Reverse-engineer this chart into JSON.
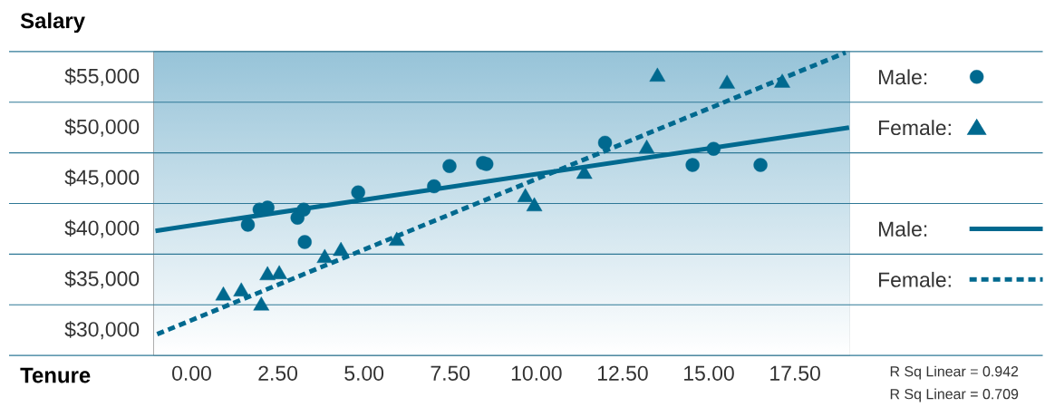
{
  "chart_data": {
    "type": "scatter",
    "title": "Salary",
    "xlabel": "Tenure",
    "xlim": [
      -1.1,
      19.1
    ],
    "ylim": [
      27500,
      57500
    ],
    "xticks": [
      {
        "value": 0,
        "label": "0.00"
      },
      {
        "value": 2.5,
        "label": "2.50"
      },
      {
        "value": 5,
        "label": "5.00"
      },
      {
        "value": 7.5,
        "label": "7.50"
      },
      {
        "value": 10,
        "label": "10.00"
      },
      {
        "value": 12.5,
        "label": "12.50"
      },
      {
        "value": 15,
        "label": "15.00"
      },
      {
        "value": 17.5,
        "label": "17.50"
      }
    ],
    "yticks": [
      {
        "value": 27500,
        "label": null
      },
      {
        "value": 30000,
        "label": "$30,000"
      },
      {
        "value": 32500,
        "label": null
      },
      {
        "value": 35000,
        "label": "$35,000"
      },
      {
        "value": 37500,
        "label": null
      },
      {
        "value": 40000,
        "label": "$40,000"
      },
      {
        "value": 42500,
        "label": null
      },
      {
        "value": 45000,
        "label": "$45,000"
      },
      {
        "value": 47500,
        "label": null
      },
      {
        "value": 50000,
        "label": "$50,000"
      },
      {
        "value": 52500,
        "label": null
      },
      {
        "value": 55000,
        "label": "$55,000"
      },
      {
        "value": 57500,
        "label": null
      }
    ],
    "grid": "y",
    "legend": "right",
    "series": [
      {
        "name": "Male:",
        "marker": "circle",
        "color": "#00698f",
        "x": [
          1.63,
          1.97,
          2.2,
          3.07,
          3.25,
          3.28,
          4.83,
          7.03,
          7.48,
          8.45,
          8.55,
          11.99,
          14.53,
          15.14,
          16.5
        ],
        "values": [
          40400,
          41900,
          42100,
          41100,
          41900,
          38700,
          43600,
          44200,
          46200,
          46500,
          46400,
          48500,
          46300,
          47900,
          46300
        ]
      },
      {
        "name": "Female:",
        "marker": "triangle",
        "color": "#00698f",
        "x": [
          0.92,
          1.44,
          2.02,
          2.2,
          2.54,
          3.86,
          4.33,
          5.95,
          9.68,
          9.94,
          11.39,
          13.2,
          13.51,
          15.53,
          17.13
        ],
        "values": [
          33400,
          33800,
          32400,
          35400,
          35500,
          37100,
          37800,
          38800,
          43100,
          42200,
          45400,
          47900,
          55000,
          54300,
          54400
        ]
      },
      {
        "name": "Male:",
        "type": "line",
        "line_style": "solid",
        "marker": "none",
        "color": "#00698f",
        "x": [
          -1.05,
          19.07
        ],
        "values": [
          39800,
          50000
        ]
      },
      {
        "name": "Female:",
        "type": "line",
        "line_style": "dashed",
        "marker": "none",
        "color": "#00698f",
        "x": [
          -1.0,
          18.97
        ],
        "values": [
          29600,
          57400
        ]
      }
    ],
    "annotations": [
      "R Sq Linear = 0.942",
      "R Sq Linear = 0.709"
    ]
  }
}
